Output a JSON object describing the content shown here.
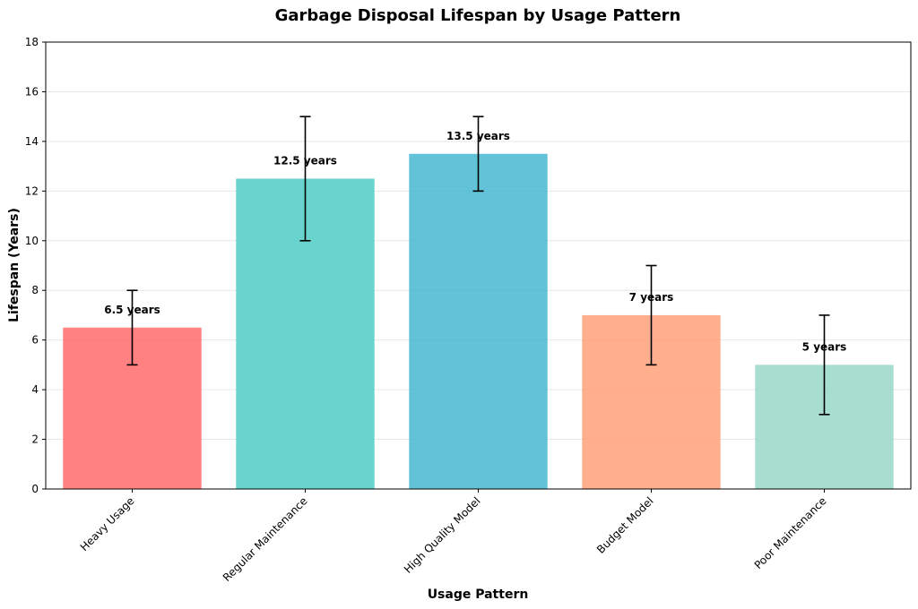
{
  "chart_data": {
    "type": "bar",
    "title": "Garbage Disposal Lifespan by Usage Pattern",
    "xlabel": "Usage Pattern",
    "ylabel": "Lifespan (Years)",
    "ylim": [
      0,
      18
    ],
    "yticks": [
      "0",
      "2",
      "4",
      "6",
      "8",
      "10",
      "12",
      "14",
      "16",
      "18"
    ],
    "grid": "horizontal",
    "categories": [
      "Heavy Usage",
      "Regular Maintenance",
      "High Quality Model",
      "Budget Model",
      "Poor Maintenance"
    ],
    "values": [
      6.5,
      12.5,
      13.5,
      7,
      5
    ],
    "error_low": [
      5,
      10,
      12,
      5,
      3
    ],
    "error_high": [
      8,
      15,
      15,
      9,
      7
    ],
    "data_labels": [
      "6.5 years",
      "12.5 years",
      "13.5 years",
      "7 years",
      "5 years"
    ],
    "colors": [
      "#ff6b6b",
      "#4ecdc4",
      "#45b7d1",
      "#ffa07a",
      "#98d8c8"
    ]
  }
}
